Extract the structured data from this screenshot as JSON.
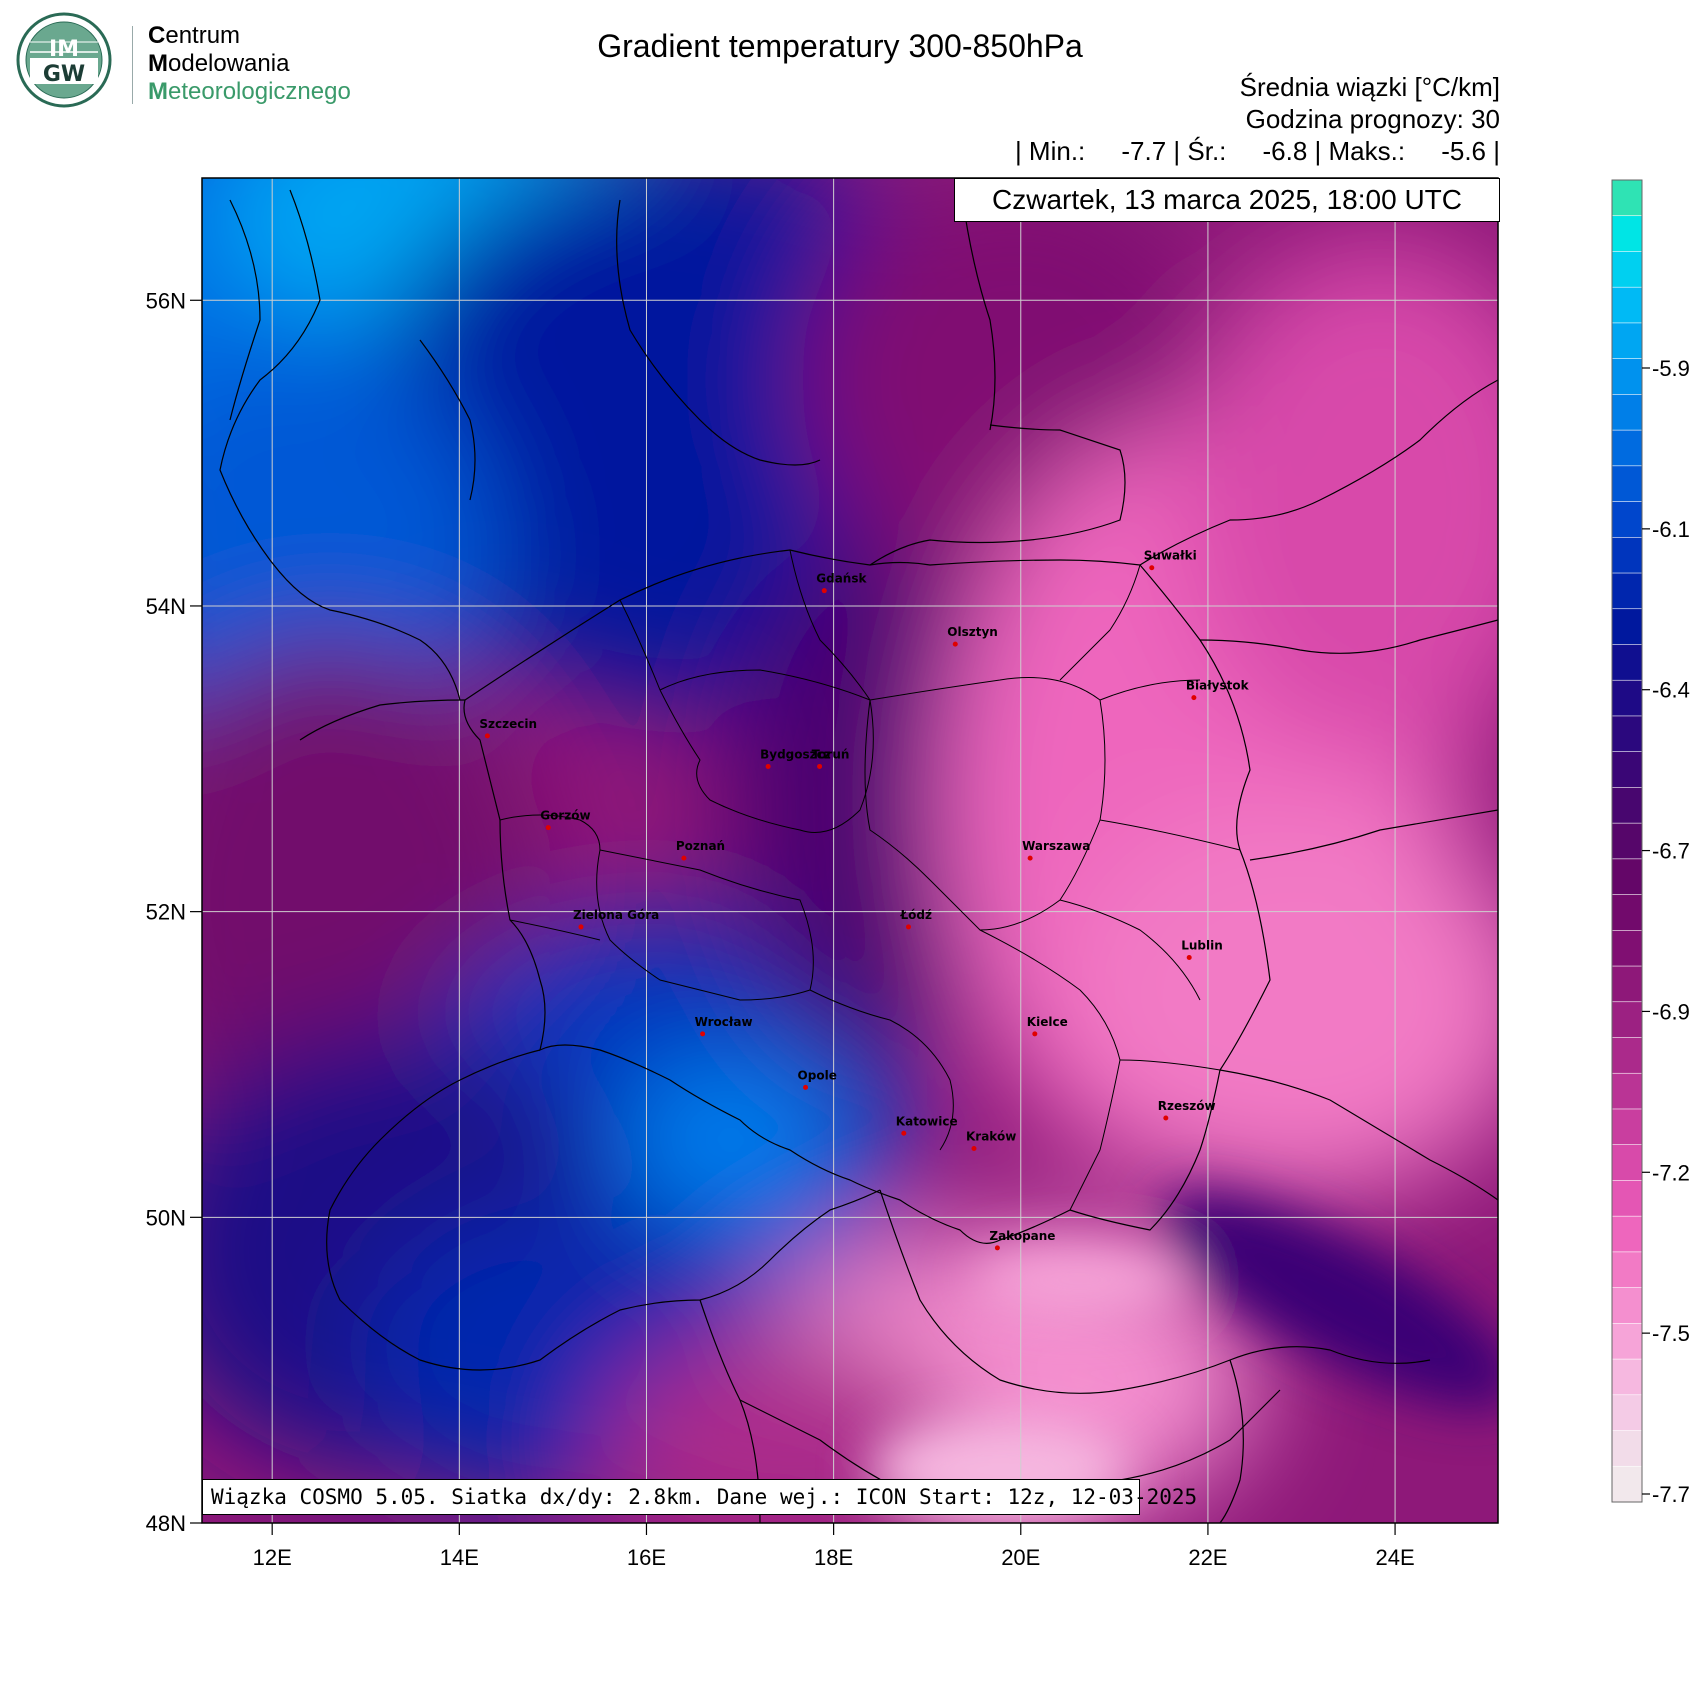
{
  "logo": {
    "emblem_text": "IMGW",
    "lines": [
      {
        "cap": "C",
        "rest": "entrum"
      },
      {
        "cap": "M",
        "rest": "odelowania"
      },
      {
        "cap": "M",
        "rest": "eteorologicznego"
      }
    ],
    "green": "#3a9a6a"
  },
  "title": "Gradient temperatury 300-850hPa",
  "info": {
    "line1": "Średnia wiązki [°C/km]",
    "line2": "Godzina prognozy: 30",
    "line3": "| Min.:     -7.7 | Śr.:     -6.8 | Maks.:     -5.6 |"
  },
  "date_label": "Czwartek, 13 marca 2025, 18:00 UTC",
  "footer": "Wiązka COSMO 5.05. Siatka dx/dy: 2.8km. Dane wej.: ICON Start: 12z, 12-03-2025",
  "map": {
    "lon_range": [
      11.25,
      25.1
    ],
    "lat_range": [
      48.0,
      56.8
    ],
    "x_ticks": [
      {
        "lon": 12,
        "label": "12E"
      },
      {
        "lon": 14,
        "label": "14E"
      },
      {
        "lon": 16,
        "label": "16E"
      },
      {
        "lon": 18,
        "label": "18E"
      },
      {
        "lon": 20,
        "label": "20E"
      },
      {
        "lon": 22,
        "label": "22E"
      },
      {
        "lon": 24,
        "label": "24E"
      }
    ],
    "y_ticks": [
      {
        "lat": 48,
        "label": "48N"
      },
      {
        "lat": 50,
        "label": "50N"
      },
      {
        "lat": 52,
        "label": "52N"
      },
      {
        "lat": 54,
        "label": "54N"
      },
      {
        "lat": 56,
        "label": "56N"
      }
    ],
    "cities": [
      {
        "name": "Gdańsk",
        "lon": 17.9,
        "lat": 54.1
      },
      {
        "name": "Suwałki",
        "lon": 21.4,
        "lat": 54.25
      },
      {
        "name": "Olsztyn",
        "lon": 19.3,
        "lat": 53.75
      },
      {
        "name": "Białystok",
        "lon": 21.85,
        "lat": 53.4
      },
      {
        "name": "Szczecin",
        "lon": 14.3,
        "lat": 53.15
      },
      {
        "name": "Bydgoszcz",
        "lon": 17.3,
        "lat": 52.95
      },
      {
        "name": "Toruń",
        "lon": 17.85,
        "lat": 52.95
      },
      {
        "name": "Gorzów",
        "lon": 14.95,
        "lat": 52.55
      },
      {
        "name": "Poznań",
        "lon": 16.4,
        "lat": 52.35
      },
      {
        "name": "Warszawa",
        "lon": 20.1,
        "lat": 52.35
      },
      {
        "name": "Łódź",
        "lon": 18.8,
        "lat": 51.9
      },
      {
        "name": "Zielona Góra",
        "lon": 15.3,
        "lat": 51.9
      },
      {
        "name": "Lublin",
        "lon": 21.8,
        "lat": 51.7
      },
      {
        "name": "Wrocław",
        "lon": 16.6,
        "lat": 51.2
      },
      {
        "name": "Kielce",
        "lon": 20.15,
        "lat": 51.2
      },
      {
        "name": "Opole",
        "lon": 17.7,
        "lat": 50.85
      },
      {
        "name": "Rzeszów",
        "lon": 21.55,
        "lat": 50.65
      },
      {
        "name": "Katowice",
        "lon": 18.75,
        "lat": 50.55
      },
      {
        "name": "Kraków",
        "lon": 19.5,
        "lat": 50.45
      },
      {
        "name": "Zakopane",
        "lon": 19.75,
        "lat": 49.8
      }
    ],
    "city_dot_color": "#e00000"
  },
  "colorbar": {
    "colors": [
      "#2fe3b4",
      "#00e5e5",
      "#00d0f0",
      "#00baf5",
      "#00a6f2",
      "#0092ee",
      "#007fe8",
      "#006be0",
      "#0058d6",
      "#0046cc",
      "#0035bd",
      "#0026ae",
      "#00189e",
      "#100f90",
      "#1e0a86",
      "#2b087e",
      "#3a0676",
      "#48066f",
      "#56066a",
      "#640668",
      "#720a6c",
      "#800f72",
      "#8e1879",
      "#9c2182",
      "#ab2a8b",
      "#ba3495",
      "#c93e9f",
      "#d84aaa",
      "#e456b4",
      "#ee66bd",
      "#f27ac5",
      "#f48fcf",
      "#f6a4d8",
      "#f6b8e0",
      "#f4cbe6",
      "#f2dce9",
      "#f2e8ec"
    ],
    "labels": [
      "-5.9",
      "-6.1",
      "-6.4",
      "-6.7",
      "-6.9",
      "-7.2",
      "-7.5",
      "-7.7"
    ]
  }
}
